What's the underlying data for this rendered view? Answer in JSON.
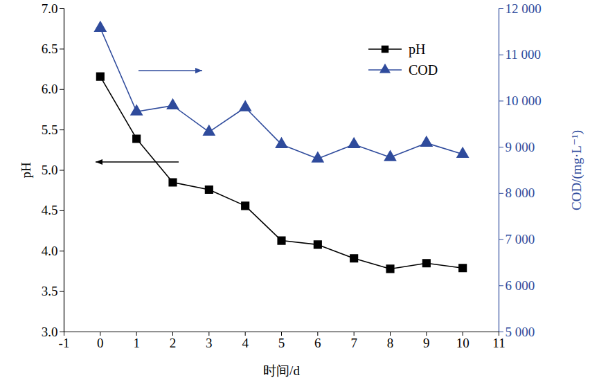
{
  "chart_data": {
    "type": "line",
    "x": [
      0,
      1,
      2,
      3,
      4,
      5,
      6,
      7,
      8,
      9,
      10
    ],
    "xlabel": "时间/d",
    "ylabel": "pH",
    "y2label": "COD/(mg·L⁻¹)",
    "xlim": [
      -1,
      11
    ],
    "xticks": [
      -1,
      0,
      1,
      2,
      3,
      4,
      5,
      6,
      7,
      8,
      9,
      10,
      11
    ],
    "ylim": [
      3.0,
      7.0
    ],
    "yticks": [
      {
        "value": 3,
        "label": "3.0"
      },
      {
        "value": 3.5,
        "label": "3.5"
      },
      {
        "value": 4,
        "label": "4.0"
      },
      {
        "value": 4.5,
        "label": "4.5"
      },
      {
        "value": 5,
        "label": "5.0"
      },
      {
        "value": 5.5,
        "label": "5.5"
      },
      {
        "value": 6,
        "label": "6.0"
      },
      {
        "value": 6.5,
        "label": "6.5"
      },
      {
        "value": 7,
        "label": "7.0"
      }
    ],
    "y2lim": [
      5000,
      12000
    ],
    "y2ticks": [
      {
        "value": 5000,
        "label": "5 000"
      },
      {
        "value": 6000,
        "label": "6 000"
      },
      {
        "value": 7000,
        "label": "7 000"
      },
      {
        "value": 8000,
        "label": "8 000"
      },
      {
        "value": 9000,
        "label": "9 000"
      },
      {
        "value": 10000,
        "label": "10 000"
      },
      {
        "value": 11000,
        "label": "11 000"
      },
      {
        "value": 12000,
        "label": "12 000"
      }
    ],
    "grid": false,
    "legend": "upper right",
    "series": [
      {
        "name": "pH",
        "color": "#000000",
        "marker": "square",
        "values": [
          6.16,
          5.39,
          4.85,
          4.76,
          4.56,
          4.13,
          4.08,
          3.91,
          3.78,
          3.85,
          3.79
        ]
      },
      {
        "name": "COD",
        "color": "#2f4b9c",
        "marker": "triangle",
        "axis": "y2",
        "values": [
          11580,
          9770,
          9900,
          9330,
          9860,
          9060,
          8750,
          9060,
          8780,
          9090,
          8850
        ]
      }
    ]
  }
}
